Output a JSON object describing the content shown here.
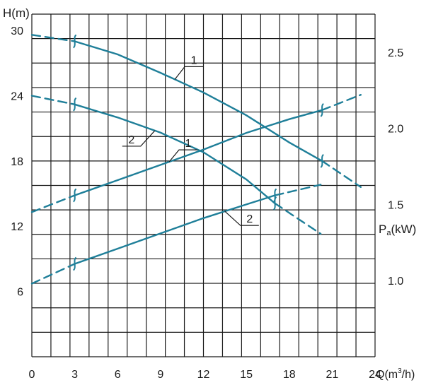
{
  "chart_data": {
    "type": "line",
    "color": "#1f7f99",
    "xlabel": "Q(m³/h)",
    "ylabel_head": "H(m)",
    "ylabel_power": "Pa(kW)",
    "ylabel_power_main": "P",
    "ylabel_power_sub": "a",
    "ylabel_power_unit": "(kW)",
    "x_ticks": [
      "0",
      "3",
      "6",
      "9",
      "12",
      "15",
      "18",
      "21",
      "24"
    ],
    "head_ticks": [
      "30",
      "24",
      "18",
      "12",
      "6"
    ],
    "power_ticks": [
      "2.5",
      "2.0",
      "1.5",
      "1.0"
    ],
    "xlim": [
      0,
      24
    ],
    "head_ylim": [
      0,
      31.5
    ],
    "power_ylim": [
      0.5,
      2.75
    ],
    "grid": true,
    "head_series": [
      {
        "name": "1",
        "x": [
          0,
          3,
          6,
          9,
          12,
          15,
          18,
          20.3,
          23
        ],
        "y": [
          29.6,
          29.0,
          27.8,
          26.1,
          24.3,
          22.2,
          19.7,
          18.0,
          15.6
        ],
        "operating_range": [
          3,
          20.3
        ]
      },
      {
        "name": "2",
        "x": [
          0,
          3,
          6,
          9,
          12,
          15,
          17,
          20.2
        ],
        "y": [
          24.0,
          23.2,
          22.0,
          20.6,
          18.8,
          16.3,
          14.1,
          11.3
        ],
        "operating_range": [
          3,
          17
        ]
      }
    ],
    "power_series": [
      {
        "name": "1",
        "x": [
          0,
          3,
          6,
          9,
          12,
          15,
          18,
          20.3,
          23
        ],
        "y": [
          1.45,
          1.56,
          1.66,
          1.76,
          1.86,
          1.97,
          2.06,
          2.12,
          2.22
        ],
        "operating_range": [
          3,
          20.3
        ]
      },
      {
        "name": "2",
        "x": [
          0,
          3,
          6,
          9,
          12,
          15,
          17,
          20.2
        ],
        "y": [
          0.98,
          1.11,
          1.21,
          1.31,
          1.41,
          1.5,
          1.56,
          1.63
        ],
        "operating_range": [
          3,
          17
        ]
      }
    ]
  }
}
